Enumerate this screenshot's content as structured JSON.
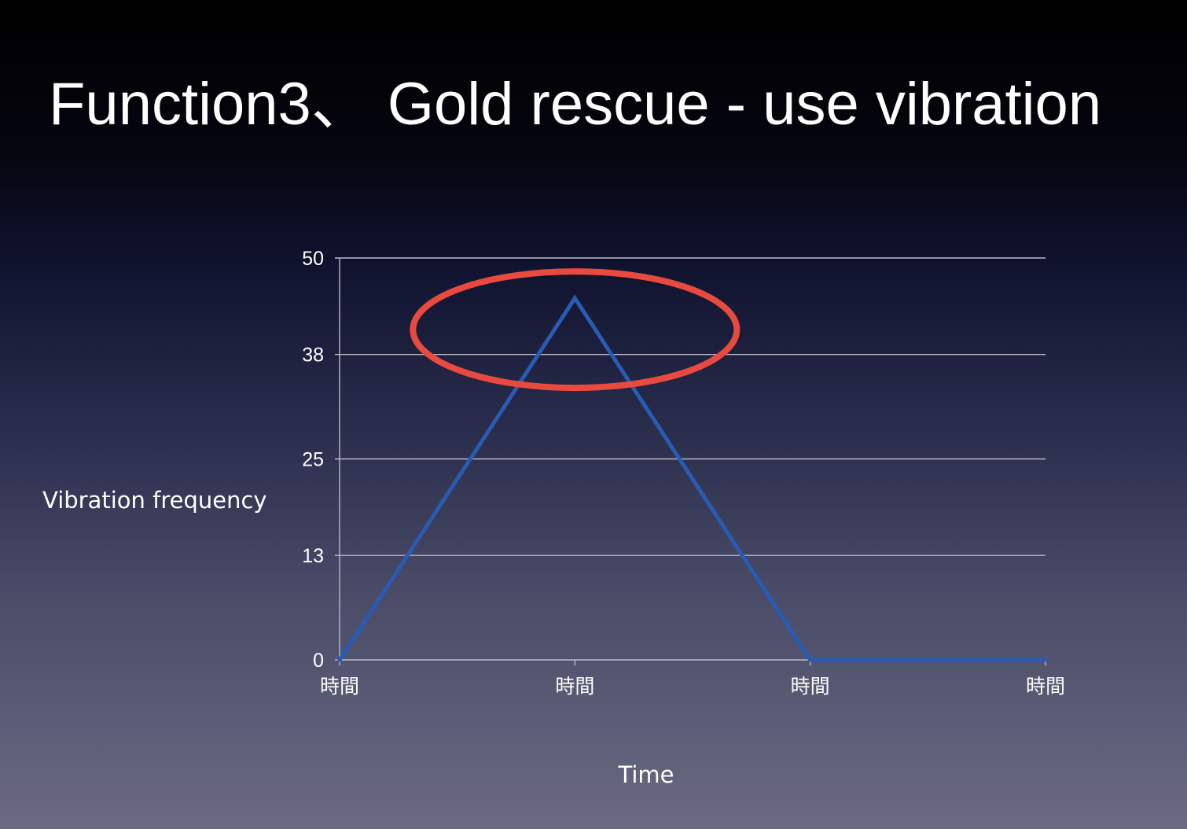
{
  "slide": {
    "title": "Function3、 Gold rescue - use vibration"
  },
  "chart_data": {
    "type": "line",
    "title": "",
    "xlabel": "Time",
    "ylabel": "Vibration frequency",
    "categories": [
      "時間",
      "時間",
      "時間",
      "時間"
    ],
    "y_ticks": [
      0,
      13,
      25,
      38,
      50
    ],
    "ylim": [
      0,
      50
    ],
    "grid": true,
    "legend": "none",
    "series": [
      {
        "values": [
          0,
          45,
          0,
          0
        ],
        "color": "#2a5bb3"
      }
    ],
    "annotations": [
      {
        "type": "ellipse",
        "around": "peak",
        "category_index": 1,
        "color": "#e84a3f"
      }
    ]
  }
}
